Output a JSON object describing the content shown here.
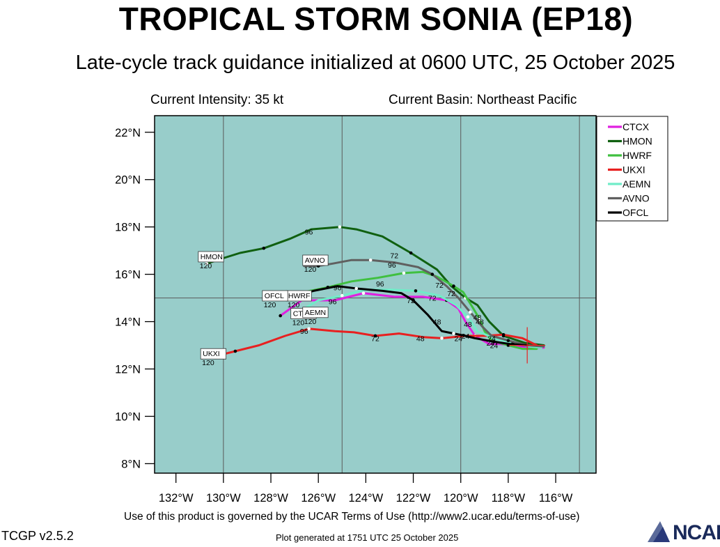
{
  "header": {
    "title": "TROPICAL STORM SONIA (EP18)",
    "subtitle": "Late-cycle track guidance initialized at 0600 UTC, 25 October 2025",
    "intensity": "Current Intensity: 35 kt",
    "basin": "Current Basin: Northeast Pacific"
  },
  "footer": {
    "terms": "Use of this product is governed by the UCAR Terms of Use (http://www2.ucar.edu/terms-of-use)",
    "version": "TCGP v2.5.2",
    "generated": "Plot generated at 1751 UTC   25 October 2025",
    "logo": "NCAR"
  },
  "colors": {
    "ocean": "#98cdca",
    "grid": "#5a5a5a",
    "CTCX": "#e020e0",
    "HMON": "#106010",
    "HWRF": "#40c040",
    "UKXI": "#e82020",
    "AEMN": "#70ecc8",
    "AVNO": "#606060",
    "OFCL": "#000000"
  },
  "chart_data": {
    "type": "map-track",
    "x_axis": {
      "range": [
        -132.9,
        -114.3
      ],
      "ticks": [
        -132,
        -130,
        -128,
        -126,
        -124,
        -122,
        -120,
        -118,
        -116
      ],
      "tick_labels": [
        "132°W",
        "130°W",
        "128°W",
        "126°W",
        "124°W",
        "122°W",
        "120°W",
        "118°W",
        "116°W"
      ]
    },
    "y_axis": {
      "range": [
        7.6,
        22.7
      ],
      "ticks": [
        8,
        10,
        12,
        14,
        16,
        18,
        20,
        22
      ],
      "tick_labels": [
        "8°N",
        "10°N",
        "12°N",
        "14°N",
        "16°N",
        "18°N",
        "20°N",
        "22°N"
      ]
    },
    "gridlines": {
      "lon": [
        -130,
        -125,
        -120,
        -115
      ],
      "lat": [
        15
      ]
    },
    "current_position": {
      "lon": -117.2,
      "lat": 13.0
    },
    "legend": {
      "placement": "right",
      "entries": [
        "CTCX",
        "HMON",
        "HWRF",
        "UKXI",
        "AEMN",
        "AVNO",
        "OFCL"
      ]
    },
    "series": [
      {
        "name": "CTCX",
        "color": "#e020e0",
        "points": [
          [
            -116.5,
            12.9
          ],
          [
            -117.1,
            12.9
          ],
          [
            -117.8,
            13.0
          ],
          [
            -118.3,
            13.05
          ],
          [
            -118.8,
            13.05
          ],
          [
            -119.4,
            13.4
          ],
          [
            -119.8,
            14.0
          ],
          [
            -120.1,
            14.55
          ],
          [
            -120.6,
            14.9
          ],
          [
            -121.6,
            15.05
          ],
          [
            -122.8,
            15.05
          ],
          [
            -124.1,
            15.2
          ],
          [
            -125.3,
            14.9
          ],
          [
            -126.7,
            14.9
          ],
          [
            -127.6,
            14.25
          ]
        ],
        "hours": [
          {
            "lon": -118.75,
            "lat": 13.1,
            "label": "24"
          },
          {
            "lon": -119.7,
            "lat": 13.9,
            "label": "48"
          },
          {
            "lon": -121.2,
            "lat": 15.0,
            "label": "72"
          },
          {
            "lon": -125.4,
            "lat": 14.85,
            "label": "96"
          }
        ],
        "end_label": "CTCX",
        "end_hour": "120",
        "end_box": [
          -127.1,
          14.15
        ]
      },
      {
        "name": "HMON",
        "color": "#106010",
        "points": [
          [
            -116.5,
            13.0
          ],
          [
            -117.3,
            13.1
          ],
          [
            -118.2,
            13.4
          ],
          [
            -118.8,
            14.0
          ],
          [
            -119.3,
            14.7
          ],
          [
            -119.8,
            15.0
          ],
          [
            -120.4,
            15.5
          ],
          [
            -121.0,
            16.2
          ],
          [
            -122.1,
            16.9
          ],
          [
            -123.3,
            17.6
          ],
          [
            -124.4,
            17.9
          ],
          [
            -125.1,
            18.0
          ],
          [
            -126.3,
            17.9
          ],
          [
            -127.2,
            17.5
          ],
          [
            -128.3,
            17.1
          ],
          [
            -129.3,
            16.9
          ],
          [
            -130.1,
            16.65
          ],
          [
            -130.7,
            16.45
          ]
        ],
        "hours": [
          {
            "lon": -118.7,
            "lat": 13.3,
            "label": "24"
          },
          {
            "lon": -119.3,
            "lat": 14.2,
            "label": "48"
          },
          {
            "lon": -122.8,
            "lat": 16.8,
            "label": "72"
          },
          {
            "lon": -126.4,
            "lat": 17.8,
            "label": "96"
          }
        ],
        "end_label": "HMON",
        "end_hour": "120",
        "end_box": [
          -131.0,
          16.55
        ]
      },
      {
        "name": "HWRF",
        "color": "#40c040",
        "points": [
          [
            -116.8,
            12.85
          ],
          [
            -117.4,
            12.85
          ],
          [
            -118.0,
            13.0
          ],
          [
            -118.7,
            13.2
          ],
          [
            -119.0,
            13.6
          ],
          [
            -119.2,
            14.1
          ],
          [
            -119.5,
            14.6
          ],
          [
            -119.9,
            15.25
          ],
          [
            -120.3,
            15.5
          ],
          [
            -121.0,
            15.9
          ],
          [
            -121.6,
            16.1
          ],
          [
            -122.4,
            16.05
          ],
          [
            -123.5,
            15.85
          ],
          [
            -124.6,
            15.7
          ],
          [
            -125.6,
            15.45
          ],
          [
            -126.6,
            15.25
          ],
          [
            -127.3,
            15.0
          ]
        ],
        "hours": [
          {
            "lon": -118.6,
            "lat": 13.0,
            "label": "24"
          },
          {
            "lon": -119.2,
            "lat": 14.0,
            "label": "48"
          },
          {
            "lon": -120.4,
            "lat": 15.2,
            "label": "72"
          },
          {
            "lon": -123.4,
            "lat": 15.6,
            "label": "96"
          }
        ],
        "end_label": "HWRF",
        "end_hour": "120",
        "end_box": [
          -127.3,
          14.9
        ]
      },
      {
        "name": "UKXI",
        "color": "#e82020",
        "points": [
          [
            -116.8,
            13.0
          ],
          [
            -117.4,
            13.3
          ],
          [
            -118.2,
            13.45
          ],
          [
            -119.0,
            13.4
          ],
          [
            -119.8,
            13.4
          ],
          [
            -120.8,
            13.3
          ],
          [
            -121.6,
            13.35
          ],
          [
            -122.6,
            13.5
          ],
          [
            -123.6,
            13.4
          ],
          [
            -124.5,
            13.55
          ],
          [
            -125.3,
            13.6
          ],
          [
            -126.4,
            13.7
          ],
          [
            -127.4,
            13.4
          ],
          [
            -128.5,
            13.0
          ],
          [
            -129.5,
            12.75
          ],
          [
            -130.5,
            12.5
          ],
          [
            -130.9,
            12.45
          ]
        ],
        "hours": [
          {
            "lon": -120.1,
            "lat": 13.3,
            "label": "24"
          },
          {
            "lon": -121.7,
            "lat": 13.3,
            "label": "48"
          },
          {
            "lon": -123.6,
            "lat": 13.3,
            "label": "72"
          },
          {
            "lon": -126.6,
            "lat": 13.6,
            "label": "96"
          }
        ],
        "end_label": "UKXI",
        "end_hour": "120",
        "end_box": [
          -130.9,
          12.45
        ]
      },
      {
        "name": "AEMN",
        "color": "#70ecc8",
        "points": [
          [
            -116.6,
            12.9
          ],
          [
            -117.1,
            12.95
          ],
          [
            -117.8,
            13.1
          ],
          [
            -118.6,
            13.3
          ],
          [
            -119.3,
            13.6
          ],
          [
            -119.7,
            14.2
          ],
          [
            -120.2,
            14.7
          ],
          [
            -120.9,
            15.1
          ],
          [
            -121.9,
            15.3
          ],
          [
            -122.9,
            15.35
          ],
          [
            -124.0,
            15.35
          ],
          [
            -125.0,
            15.1
          ],
          [
            -126.0,
            14.9
          ],
          [
            -126.6,
            14.55
          ],
          [
            -127.0,
            14.3
          ]
        ],
        "hours": [],
        "end_label": "AEMN",
        "end_hour": "120",
        "end_box": [
          -126.6,
          14.2
        ]
      },
      {
        "name": "AVNO",
        "color": "#606060",
        "points": [
          [
            -116.5,
            12.95
          ],
          [
            -117.2,
            13.0
          ],
          [
            -118.0,
            13.2
          ],
          [
            -118.7,
            13.4
          ],
          [
            -119.1,
            13.8
          ],
          [
            -119.6,
            14.4
          ],
          [
            -120.1,
            15.0
          ],
          [
            -120.6,
            15.5
          ],
          [
            -121.2,
            16.0
          ],
          [
            -121.8,
            16.3
          ],
          [
            -122.8,
            16.5
          ],
          [
            -123.8,
            16.6
          ],
          [
            -124.6,
            16.6
          ],
          [
            -125.4,
            16.45
          ],
          [
            -126.0,
            16.35
          ],
          [
            -126.6,
            16.35
          ]
        ],
        "hours": [
          {
            "lon": -120.9,
            "lat": 15.55,
            "label": "72"
          },
          {
            "lon": -122.9,
            "lat": 16.4,
            "label": "96"
          }
        ],
        "end_label": "AVNO",
        "end_hour": "120",
        "end_box": [
          -126.6,
          16.4
        ]
      },
      {
        "name": "OFCL",
        "color": "#000000",
        "points": [
          [
            -117.2,
            13.0
          ],
          [
            -117.9,
            13.05
          ],
          [
            -118.6,
            13.15
          ],
          [
            -119.4,
            13.3
          ],
          [
            -119.8,
            13.4
          ],
          [
            -120.3,
            13.5
          ],
          [
            -120.8,
            13.6
          ],
          [
            -121.4,
            14.3
          ],
          [
            -122.0,
            14.9
          ],
          [
            -122.5,
            15.2
          ],
          [
            -123.3,
            15.3
          ],
          [
            -124.4,
            15.4
          ],
          [
            -125.2,
            15.5
          ],
          [
            -126.2,
            15.3
          ],
          [
            -127.4,
            15.0
          ]
        ],
        "hours": [
          {
            "lon": -119.8,
            "lat": 13.4,
            "label": "24"
          },
          {
            "lon": -121.0,
            "lat": 14.0,
            "label": "48"
          },
          {
            "lon": -122.1,
            "lat": 14.9,
            "label": "72"
          },
          {
            "lon": -125.2,
            "lat": 15.45,
            "label": "96"
          }
        ],
        "end_label": "OFCL",
        "end_hour": "120",
        "end_box": [
          -128.3,
          14.9
        ]
      }
    ]
  }
}
